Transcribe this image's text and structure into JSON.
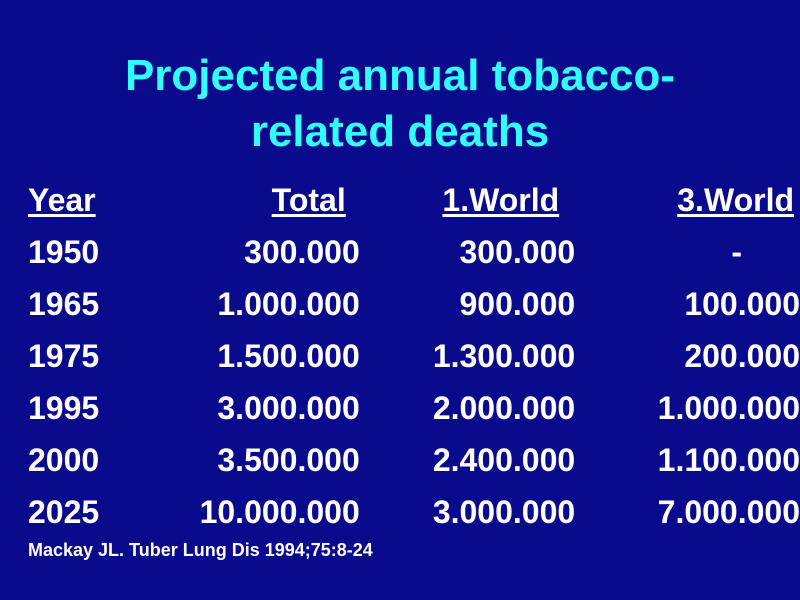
{
  "slide": {
    "title_line1": "Projected annual tobacco-",
    "title_line2": "related deaths",
    "columns": [
      "Year",
      "Total",
      "1.World",
      "3.World"
    ],
    "rows": [
      [
        "1950",
        "300.000",
        "300.000",
        "-"
      ],
      [
        "1965",
        "1.000.000",
        "900.000",
        "100.000"
      ],
      [
        "1975",
        "1.500.000",
        "1.300.000",
        "200.000"
      ],
      [
        "1995",
        "3.000.000",
        "2.000.000",
        "1.000.000"
      ],
      [
        "2000",
        "3.500.000",
        "2.400.000",
        "1.100.000"
      ],
      [
        "2025",
        "10.000.000",
        "3.000.000",
        "7.000.000"
      ]
    ],
    "source": "Mackay JL. Tuber Lung Dis 1994;75:8-24"
  },
  "colors": {
    "background": "#0a0a8c",
    "title": "#33ffff",
    "text": "#ffffff"
  }
}
